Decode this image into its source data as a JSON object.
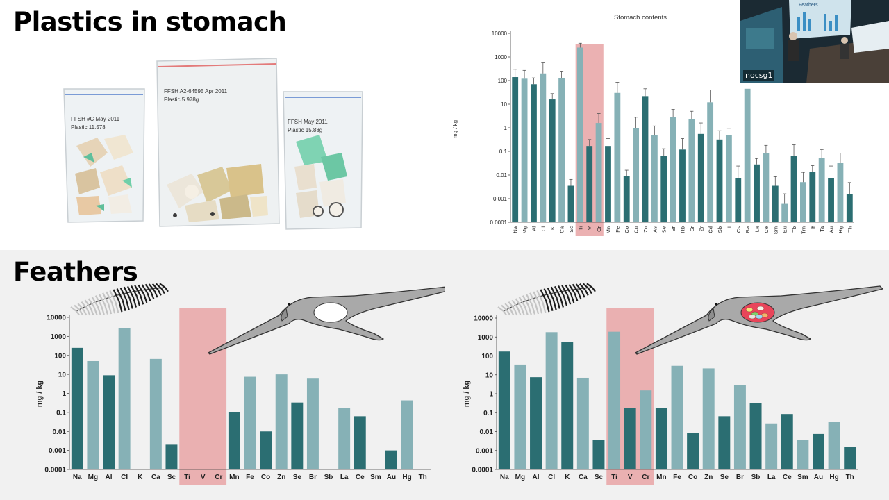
{
  "slide": {
    "title_top": "Plastics in stomach",
    "title_bottom": "Feathers"
  },
  "bag_labels": {
    "left": [
      "FFSH #C May 2011",
      "Plastic 11.578"
    ],
    "middle": [
      "FFSH A2-64595 Apr 2011",
      "Plastic 5.978g"
    ],
    "right": [
      "FFSH May 2011",
      "Plastic 15.88g"
    ]
  },
  "webcam": {
    "label": "nocsg1",
    "screen_title": "Feathers"
  },
  "colors": {
    "dark_bar": "#2b6e72",
    "light_bar": "#86b1b6",
    "highlight": "#e9a8aa",
    "bird": "#a9a9a9"
  },
  "chart_data": [
    {
      "type": "bar",
      "title": "Stomach contents",
      "ylabel": "mg / kg",
      "yscale": "log",
      "ylim": [
        0.0001,
        10000
      ],
      "yticks": [
        "0.0001",
        "0.001",
        "0.01",
        "0.1",
        "1",
        "10",
        "100",
        "1000",
        "10000"
      ],
      "categories": [
        "Na",
        "Mg",
        "Al",
        "Cl",
        "K",
        "Ca",
        "Sc",
        "Ti",
        "V",
        "Cr",
        "Mn",
        "Fe",
        "Co",
        "Cu",
        "Zn",
        "As",
        "Se",
        "Br",
        "Rb",
        "Sr",
        "Zr",
        "Cd",
        "Sb",
        "I",
        "Cs",
        "Ba",
        "La",
        "Ce",
        "Sm",
        "Eu",
        "Tb",
        "Tm",
        "Hf",
        "Ta",
        "Au",
        "Hg",
        "Th"
      ],
      "values": [
        140,
        120,
        70,
        200,
        16,
        130,
        0.0035,
        2500,
        0.17,
        1.6,
        0.17,
        30,
        0.009,
        1,
        22,
        0.5,
        0.065,
        2.8,
        0.12,
        2.4,
        0.55,
        12,
        0.32,
        0.48,
        0.0075,
        45,
        0.028,
        0.085,
        0.0035,
        0.0006,
        0.065,
        0.005,
        0.014,
        0.052,
        0.0075,
        0.033,
        0.0016
      ],
      "errors": [
        300,
        270,
        130,
        600,
        28,
        250,
        0.0065,
        3800,
        0.32,
        4,
        0.35,
        85,
        0.016,
        2.8,
        45,
        1.2,
        0.13,
        6,
        0.35,
        5,
        1.6,
        40,
        0.75,
        0.95,
        0.024,
        null,
        0.05,
        0.18,
        0.0085,
        0.0016,
        0.19,
        0.013,
        0.025,
        0.12,
        0.024,
        0.085,
        0.0048
      ],
      "shades": [
        "dark",
        "light",
        "dark",
        "light",
        "dark",
        "light",
        "dark",
        "light",
        "dark",
        "light",
        "dark",
        "light",
        "dark",
        "light",
        "dark",
        "light",
        "dark",
        "light",
        "dark",
        "light",
        "dark",
        "light",
        "dark",
        "light",
        "dark",
        "light",
        "dark",
        "light",
        "dark",
        "light",
        "dark",
        "light",
        "dark",
        "light",
        "dark",
        "light",
        "dark"
      ],
      "highlighted": [
        "Ti",
        "V",
        "Cr"
      ]
    },
    {
      "type": "bar",
      "ylabel": "mg / kg",
      "yscale": "log",
      "ylim": [
        0.0001,
        10000
      ],
      "yticks": [
        "0.0001",
        "0.001",
        "0.01",
        "0.1",
        "1",
        "10",
        "100",
        "1000",
        "10000"
      ],
      "categories": [
        "Na",
        "Mg",
        "Al",
        "Cl",
        "K",
        "Ca",
        "Sc",
        "Ti",
        "V",
        "Cr",
        "Mn",
        "Fe",
        "Co",
        "Zn",
        "Se",
        "Br",
        "Sb",
        "La",
        "Ce",
        "Sm",
        "Au",
        "Hg",
        "Th"
      ],
      "values": [
        250,
        50,
        9,
        2700,
        null,
        65,
        0.002,
        null,
        null,
        null,
        0.1,
        7.5,
        0.01,
        10,
        0.33,
        6,
        null,
        0.17,
        0.063,
        null,
        0.001,
        0.43,
        null
      ],
      "shades": [
        "dark",
        "light",
        "dark",
        "light",
        "dark",
        "light",
        "dark",
        "light",
        "dark",
        "light",
        "dark",
        "light",
        "dark",
        "light",
        "dark",
        "light",
        "dark",
        "light",
        "dark",
        "light",
        "dark",
        "light",
        "dark"
      ],
      "highlighted": [
        "Ti",
        "V",
        "Cr"
      ]
    },
    {
      "type": "bar",
      "ylabel": "mg / kg",
      "yscale": "log",
      "ylim": [
        0.0001,
        10000
      ],
      "yticks": [
        "0.0001",
        "0.001",
        "0.01",
        "0.1",
        "1",
        "10",
        "100",
        "1000",
        "10000"
      ],
      "categories": [
        "Na",
        "Mg",
        "Al",
        "Cl",
        "K",
        "Ca",
        "Sc",
        "Ti",
        "V",
        "Cr",
        "Mn",
        "Fe",
        "Co",
        "Zn",
        "Se",
        "Br",
        "Sb",
        "La",
        "Ce",
        "Sm",
        "Au",
        "Hg",
        "Th"
      ],
      "values": [
        170,
        35,
        7.5,
        1800,
        550,
        7,
        0.0035,
        1900,
        0.17,
        1.5,
        0.17,
        30,
        0.0085,
        22,
        0.065,
        2.8,
        0.32,
        0.027,
        0.085,
        0.0035,
        0.0075,
        0.033,
        0.0016
      ],
      "shades": [
        "dark",
        "light",
        "dark",
        "light",
        "dark",
        "light",
        "dark",
        "light",
        "dark",
        "light",
        "dark",
        "light",
        "dark",
        "light",
        "dark",
        "light",
        "dark",
        "light",
        "dark",
        "light",
        "dark",
        "light",
        "dark"
      ],
      "highlighted": [
        "Ti",
        "V",
        "Cr"
      ]
    }
  ]
}
